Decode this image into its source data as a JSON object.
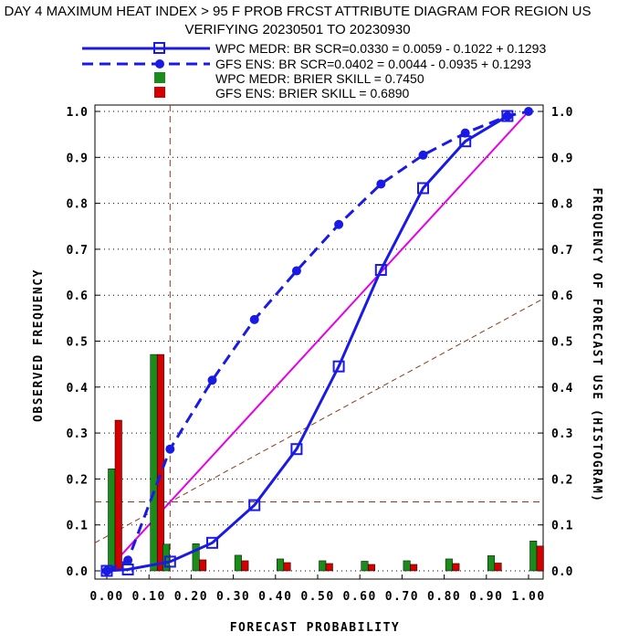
{
  "chart_data": {
    "type": "line",
    "title_line1": "DAY 4 MAXIMUM HEAT INDEX > 95 F PROB FRCST ATTRIBUTE DIAGRAM FOR REGION US",
    "title_line2": "VERIFYING 20230501 TO 20230930",
    "xlabel": "FORECAST PROBABILITY",
    "ylabel_left": "OBSERVED FREQUENCY",
    "ylabel_right": "FREQUENCY OF FORECAST USE (HISTOGRAM)",
    "xlim": [
      0,
      1
    ],
    "ylim": [
      0,
      1
    ],
    "x_ticks": [
      "0.00",
      "0.10",
      "0.20",
      "0.30",
      "0.40",
      "0.50",
      "0.60",
      "0.70",
      "0.80",
      "0.90",
      "1.00"
    ],
    "y_ticks": [
      "0.0",
      "0.1",
      "0.2",
      "0.3",
      "0.4",
      "0.5",
      "0.6",
      "0.7",
      "0.8",
      "0.9",
      "1.0"
    ],
    "grid": "dotted at y ticks",
    "legend": [
      "WPC MEDR: BR SCR=0.0330 = 0.0059 - 0.1022 + 0.1293",
      "GFS ENS: BR SCR=0.0402 = 0.0044 - 0.0935 + 0.1293",
      "WPC MEDR:  BRIER SKILL = 0.7450",
      "GFS ENS:  BRIER SKILL = 0.6890"
    ],
    "legend_placement": "top",
    "climatology": 0.15,
    "series": [
      {
        "name": "WPC MEDR",
        "x": [
          0.0,
          0.05,
          0.15,
          0.25,
          0.35,
          0.45,
          0.55,
          0.65,
          0.75,
          0.85,
          0.95
        ],
        "y": [
          0.0,
          0.003,
          0.02,
          0.061,
          0.143,
          0.265,
          0.445,
          0.655,
          0.833,
          0.935,
          0.99
        ],
        "color": "#1a1ae6",
        "style": "solid",
        "marker": "square"
      },
      {
        "name": "GFS ENS",
        "x": [
          0.0,
          0.05,
          0.15,
          0.25,
          0.35,
          0.45,
          0.55,
          0.65,
          0.75,
          0.85,
          0.95,
          1.0
        ],
        "y": [
          0.0,
          0.023,
          0.265,
          0.415,
          0.547,
          0.653,
          0.754,
          0.842,
          0.905,
          0.953,
          0.99,
          1.0
        ],
        "color": "#1a1ae6",
        "style": "dashed",
        "marker": "circle"
      }
    ],
    "histogram": {
      "bins": [
        0.0,
        0.1,
        0.2,
        0.3,
        0.4,
        0.5,
        0.6,
        0.7,
        0.8,
        0.9,
        1.0
      ],
      "series": [
        {
          "name": "WPC MEDR",
          "color": "#1a8c1a",
          "values": [
            0.222,
            0.471,
            0.059,
            0.034,
            0.026,
            0.022,
            0.021,
            0.022,
            0.026,
            0.033,
            0.065
          ]
        },
        {
          "name": "GFS ENS",
          "color": "#d40000",
          "values": [
            0.328,
            0.471,
            0.024,
            0.022,
            0.018,
            0.016,
            0.014,
            0.014,
            0.016,
            0.017,
            0.054
          ]
        }
      ],
      "extra_bar": {
        "name": "WPC MEDR",
        "color": "#1a8c1a",
        "x": 0.15,
        "value": 0.058
      }
    },
    "colors": {
      "reliability": "#1a1ae6",
      "perfect": "#e600e6",
      "reference": "#8b3a1a",
      "grid": "#000000"
    }
  }
}
